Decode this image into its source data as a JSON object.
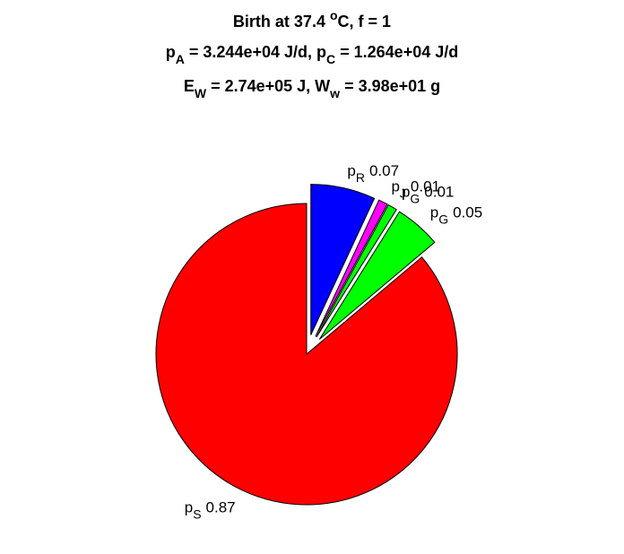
{
  "chart_data": {
    "type": "pie",
    "title_lines": [
      [
        {
          "text": "Birth at 37.4 "
        },
        {
          "text": "o",
          "sup": true
        },
        {
          "text": "C, f = 1"
        }
      ],
      [
        {
          "text": "p"
        },
        {
          "text": "A",
          "sub": true
        },
        {
          "text": " = 3.244e+04 J/d, p"
        },
        {
          "text": "C",
          "sub": true
        },
        {
          "text": " = 1.264e+04 J/d"
        }
      ],
      [
        {
          "text": "E"
        },
        {
          "text": "W",
          "sub": true
        },
        {
          "text": " = 2.74e+05 J, W"
        },
        {
          "text": "w",
          "sub": true
        },
        {
          "text": " = 3.98e+01 g"
        }
      ]
    ],
    "labels": [
      {
        "symbol": "p",
        "sub": "R"
      },
      {
        "symbol": "p",
        "sub": "J"
      },
      {
        "symbol": "p",
        "sub": "G"
      },
      {
        "symbol": "p",
        "sub": "G"
      },
      {
        "symbol": "p",
        "sub": "S"
      }
    ],
    "values": [
      0.07,
      0.01,
      0.01,
      0.05,
      0.87
    ],
    "colors": [
      "#0000ff",
      "#ff00ff",
      "#00ff00",
      "#00ff00",
      "#ff0000"
    ],
    "explode": [
      true,
      true,
      true,
      true,
      false
    ]
  }
}
